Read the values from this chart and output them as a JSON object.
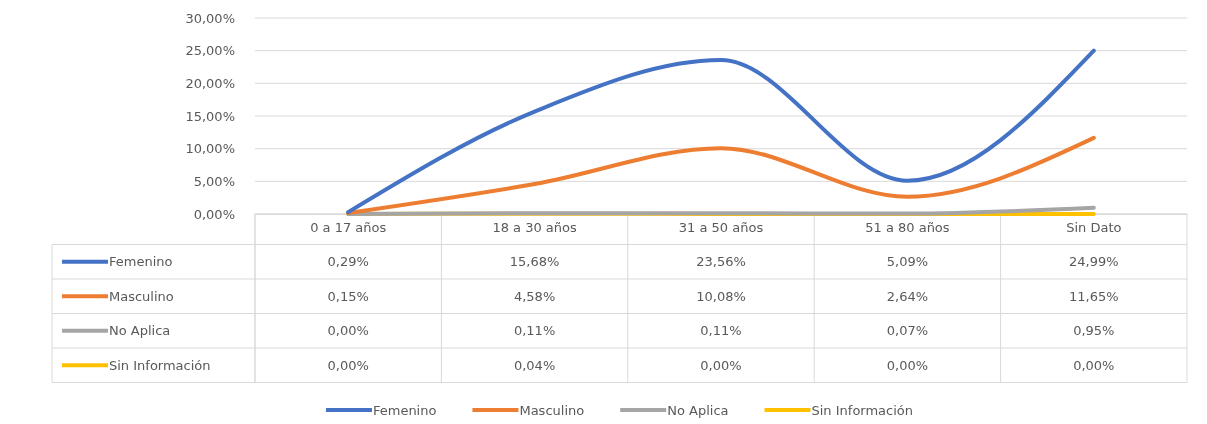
{
  "chart_data": {
    "type": "line",
    "categories": [
      "0 a 17 años",
      "18 a 30 años",
      "31 a 50 años",
      "51 a 80 años",
      "Sin Dato"
    ],
    "ylim": [
      0,
      30
    ],
    "yticks": [
      {
        "value": 0,
        "label": "0,00%"
      },
      {
        "value": 5,
        "label": "5,00%"
      },
      {
        "value": 10,
        "label": "10,00%"
      },
      {
        "value": 15,
        "label": "15,00%"
      },
      {
        "value": 20,
        "label": "20,00%"
      },
      {
        "value": 25,
        "label": "25,00%"
      },
      {
        "value": 30,
        "label": "30,00%"
      }
    ],
    "grid": "y",
    "legend": "bottom",
    "series": [
      {
        "name": "Femenino",
        "color": "#4472c4",
        "values": [
          0.29,
          15.68,
          23.56,
          5.09,
          24.99
        ],
        "value_labels": [
          "0,29%",
          "15,68%",
          "23,56%",
          "5,09%",
          "24,99%"
        ]
      },
      {
        "name": "Masculino",
        "color": "#ed7d31",
        "values": [
          0.15,
          4.58,
          10.08,
          2.64,
          11.65
        ],
        "value_labels": [
          "0,15%",
          "4,58%",
          "10,08%",
          "2,64%",
          "11,65%"
        ]
      },
      {
        "name": "No Aplica",
        "color": "#a5a5a5",
        "values": [
          0,
          0.11,
          0.11,
          0.07,
          0.95
        ],
        "value_labels": [
          "0,00%",
          "0,11%",
          "0,11%",
          "0,07%",
          "0,95%"
        ]
      },
      {
        "name": "Sin Información",
        "color": "#ffc000",
        "values": [
          0,
          0.04,
          0,
          0,
          0
        ],
        "value_labels": [
          "0,00%",
          "0,04%",
          "0,00%",
          "0,00%",
          "0,00%"
        ]
      }
    ]
  }
}
